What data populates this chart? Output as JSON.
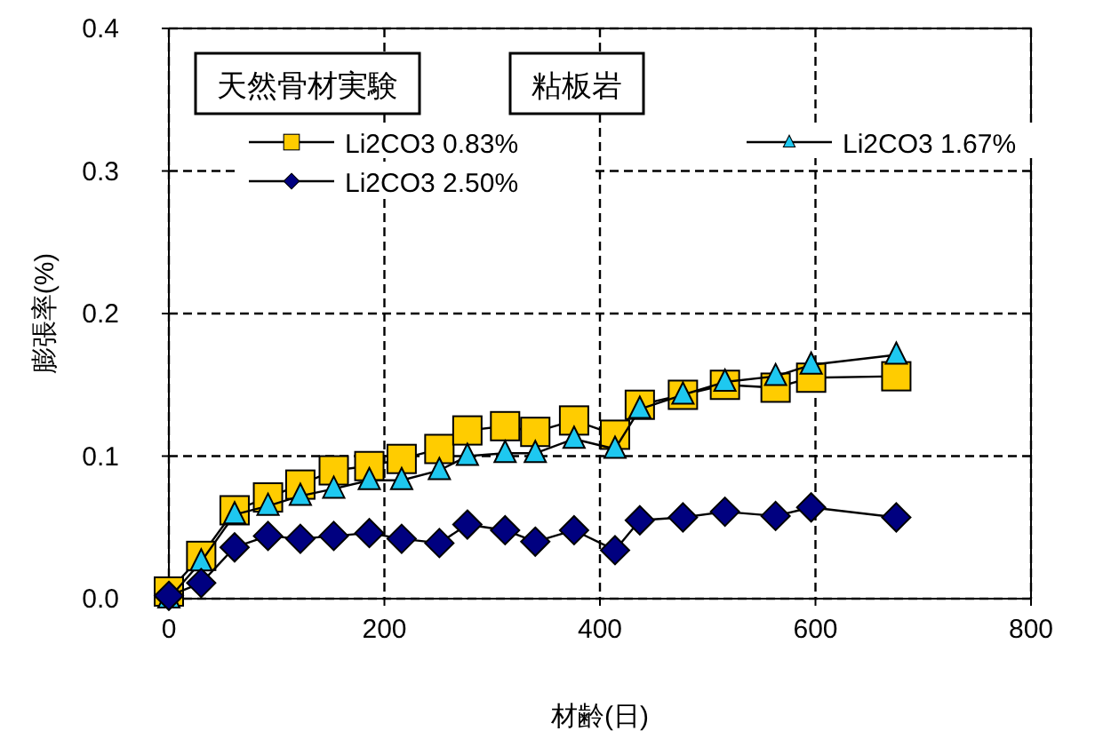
{
  "chart_data": {
    "type": "line",
    "xlabel": "材齢(日)",
    "ylabel": "膨張率(%)",
    "annotations": [
      "天然骨材実験",
      "粘板岩"
    ],
    "x": [
      0,
      30,
      61,
      92,
      122,
      153,
      186,
      216,
      251,
      277,
      312,
      340,
      376,
      414,
      437,
      477,
      516,
      563,
      596,
      675
    ],
    "series": [
      {
        "name": "Li2CO3 0.83%",
        "color": "#ffcc00",
        "marker": "square",
        "values": [
          0.005,
          0.03,
          0.062,
          0.071,
          0.08,
          0.09,
          0.093,
          0.098,
          0.105,
          0.118,
          0.121,
          0.117,
          0.125,
          0.115,
          0.136,
          0.143,
          0.15,
          0.148,
          0.155,
          0.156
        ]
      },
      {
        "name": "Li2CO3 1.67%",
        "color": "#1ec8f0",
        "marker": "triangle",
        "values": [
          0.0,
          0.026,
          0.059,
          0.065,
          0.072,
          0.077,
          0.083,
          0.083,
          0.09,
          0.1,
          0.102,
          0.102,
          0.112,
          0.105,
          0.133,
          0.143,
          0.152,
          0.156,
          0.164,
          0.171
        ]
      },
      {
        "name": "Li2CO3 2.50%",
        "color": "#000080",
        "marker": "diamond",
        "values": [
          0.002,
          0.011,
          0.036,
          0.044,
          0.042,
          0.044,
          0.046,
          0.042,
          0.039,
          0.052,
          0.048,
          0.04,
          0.048,
          0.034,
          0.055,
          0.057,
          0.061,
          0.058,
          0.064,
          0.057
        ]
      }
    ],
    "xlim": [
      0,
      800
    ],
    "xticks": [
      0,
      200,
      400,
      600,
      800
    ],
    "ylim": [
      0,
      0.4
    ],
    "yticks": [
      {
        "value": 0,
        "label": "0.0"
      },
      {
        "value": 0.1,
        "label": "0.1"
      },
      {
        "value": 0.2,
        "label": "0.2"
      },
      {
        "value": 0.3,
        "label": "0.3"
      },
      {
        "value": 0.4,
        "label": "0.4"
      }
    ],
    "grid": true,
    "legend": "top",
    "line_style": "solid"
  }
}
